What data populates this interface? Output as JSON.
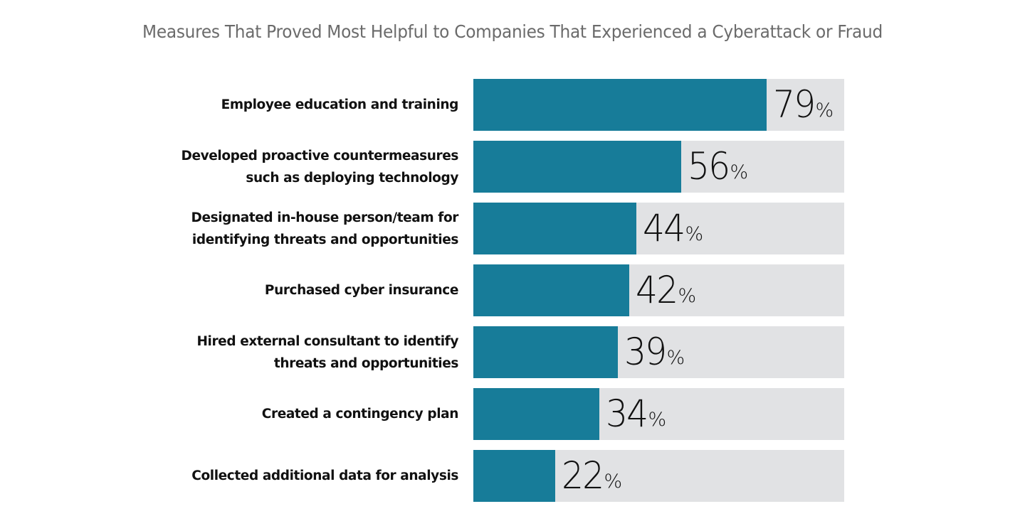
{
  "chart_data": {
    "type": "bar",
    "orientation": "horizontal",
    "title": "Measures That Proved Most Helpful to Companies That Experienced a Cyberattack or Fraud",
    "xlabel": "",
    "ylabel": "",
    "xlim": [
      0,
      100
    ],
    "unit": "%",
    "grid": false,
    "legend": null,
    "categories": [
      "Employee education and training",
      "Developed proactive countermeasures\nsuch as deploying technology",
      "Designated in-house person/team for\nidentifying threats and opportunities",
      "Purchased cyber insurance",
      "Hired external consultant to identify\nthreats and opportunities",
      "Created a contingency plan",
      "Collected additional data for analysis"
    ],
    "values": [
      79,
      56,
      44,
      42,
      39,
      34,
      22
    ],
    "value_labels": [
      "79",
      "56",
      "44",
      "42",
      "39",
      "34",
      "22"
    ],
    "percent_sign": "%",
    "colors": {
      "bar": "#177c99",
      "track": "#e1e2e4",
      "title": "#6b6b6b",
      "label": "#111111"
    }
  }
}
